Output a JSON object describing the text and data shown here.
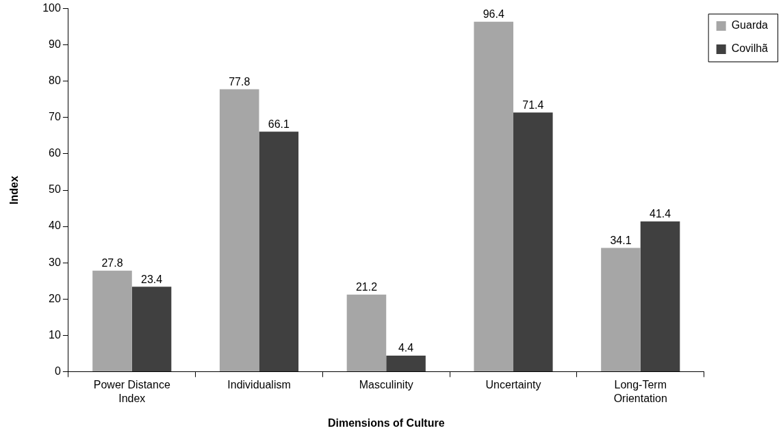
{
  "chart_data": {
    "type": "bar",
    "xlabel": "Dimensions of Culture",
    "ylabel": "Index",
    "categories": [
      "Power Distance\nIndex",
      "Individualism",
      "Masculinity",
      "Uncertainty",
      "Long-Term\nOrientation"
    ],
    "series": [
      {
        "name": "Guarda",
        "color": "#a6a6a6",
        "values": [
          27.8,
          77.8,
          21.2,
          96.4,
          34.1
        ]
      },
      {
        "name": "Covilhã",
        "color": "#404040",
        "values": [
          23.4,
          66.1,
          4.4,
          71.4,
          41.4
        ]
      }
    ],
    "ylim": [
      0,
      100
    ],
    "yticks": [
      0,
      10,
      20,
      30,
      40,
      50,
      60,
      70,
      80,
      90,
      100
    ],
    "grid": false,
    "legend": "top right",
    "data_labels": true
  }
}
